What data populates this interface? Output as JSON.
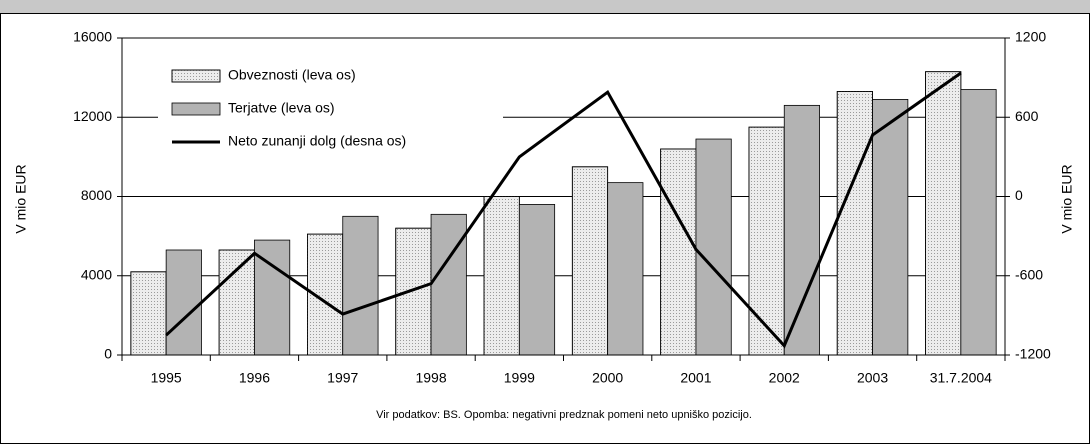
{
  "chart_data": {
    "type": "bar",
    "categories": [
      "1995",
      "1996",
      "1997",
      "1998",
      "1999",
      "2000",
      "2001",
      "2002",
      "2003",
      "31.7.2004"
    ],
    "series": [
      {
        "name": "Obveznosti (leva os)",
        "type": "bar",
        "color": "#ececec",
        "values": [
          4200,
          5300,
          6100,
          6400,
          8000,
          9500,
          10400,
          11500,
          13300,
          14300
        ]
      },
      {
        "name": "Terjatve (leva os)",
        "type": "bar",
        "color": "#b3b3b3",
        "values": [
          5300,
          5800,
          7000,
          7100,
          7600,
          8700,
          10900,
          12600,
          12900,
          13400
        ]
      },
      {
        "name": "Neto zunanji dolg (desna os)",
        "type": "line",
        "axis": "y2",
        "color": "#000000",
        "values": [
          -1050,
          -430,
          -890,
          -660,
          300,
          790,
          -400,
          -1130,
          465,
          935
        ]
      }
    ],
    "ylabel": "V mio EUR",
    "y2label": "V mio EUR",
    "ylim": [
      0,
      16000
    ],
    "yticks": [
      0,
      4000,
      8000,
      12000,
      16000
    ],
    "y2lim": [
      -1200,
      1200
    ],
    "y2ticks": [
      1200,
      600,
      0,
      -600,
      -1200
    ],
    "grid": true,
    "note": "Vir podatkov: BS. Opomba: negativni predznak pomeni neto upniško pozicijo."
  }
}
